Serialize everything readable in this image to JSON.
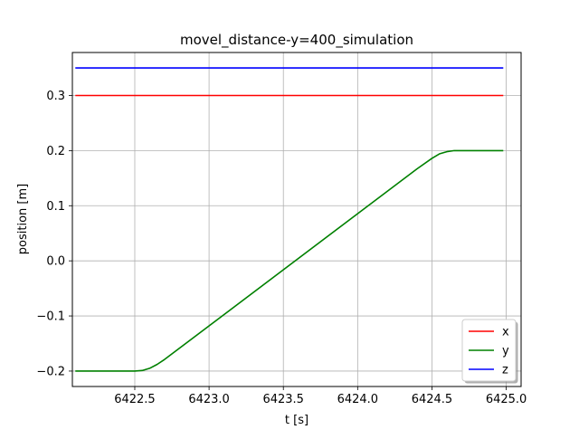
{
  "chart_data": {
    "type": "line",
    "title": "movel_distance-y=400_simulation",
    "xlabel": "t [s]",
    "ylabel": "position [m]",
    "xlim": [
      6422.08,
      6425.1
    ],
    "ylim": [
      -0.228,
      0.378
    ],
    "xticks": [
      6422.0,
      6422.5,
      6423.0,
      6423.5,
      6424.0,
      6424.5,
      6425.0
    ],
    "xtick_labels": [
      "6422.0",
      "6422.5",
      "6423.0",
      "6423.5",
      "6424.0",
      "6424.5",
      "6425.0"
    ],
    "yticks": [
      -0.2,
      -0.1,
      0.0,
      0.1,
      0.2,
      0.3
    ],
    "ytick_labels": [
      "−0.2",
      "−0.1",
      "0.0",
      "0.1",
      "0.2",
      "0.3"
    ],
    "grid": true,
    "legend_position": "lower-right",
    "series": [
      {
        "name": "x",
        "color": "#ff0000",
        "x": [
          6422.1,
          6424.98
        ],
        "y": [
          0.3,
          0.3
        ]
      },
      {
        "name": "y",
        "color": "#008000",
        "x": [
          6422.1,
          6422.5,
          6422.55,
          6422.6,
          6422.65,
          6422.7,
          6424.4,
          6424.5,
          6424.55,
          6424.6,
          6424.65,
          6424.7,
          6424.98
        ],
        "y": [
          -0.2,
          -0.2,
          -0.199,
          -0.195,
          -0.188,
          -0.179,
          0.167,
          0.186,
          0.194,
          0.198,
          0.2,
          0.2,
          0.2
        ]
      },
      {
        "name": "z",
        "color": "#0000ff",
        "x": [
          6422.1,
          6424.98
        ],
        "y": [
          0.35,
          0.35
        ]
      }
    ]
  }
}
